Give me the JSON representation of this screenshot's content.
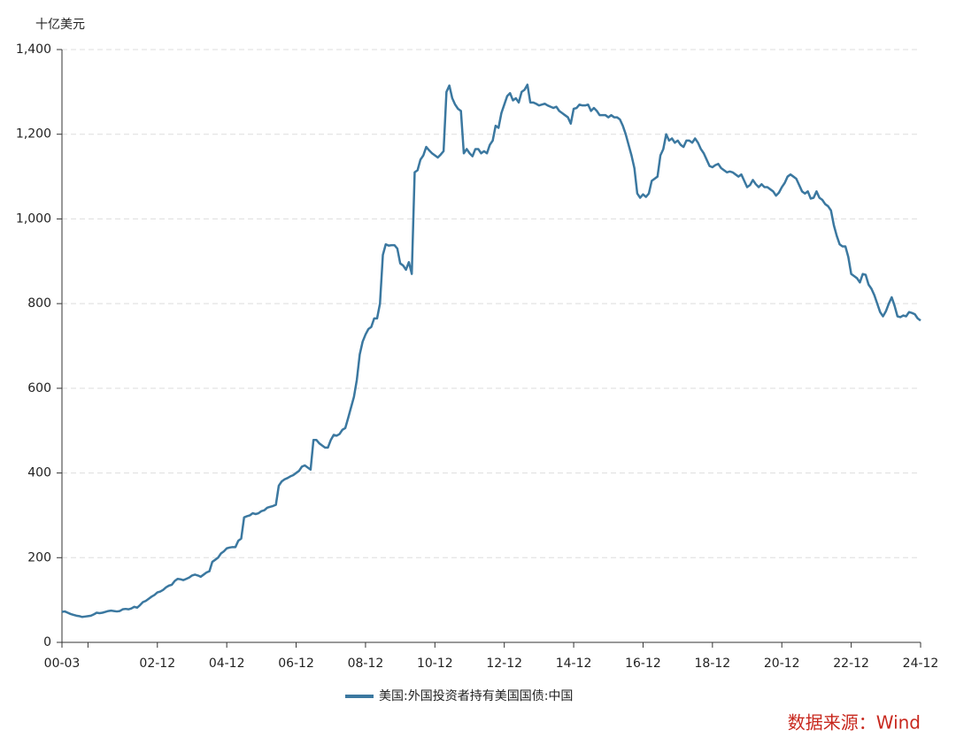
{
  "chart_data": {
    "type": "line",
    "y_label": "十亿美元",
    "source": "数据来源：Wind",
    "categories": [
      "00-03",
      null,
      null,
      null,
      null,
      null,
      null,
      null,
      null,
      null,
      null,
      null,
      null,
      null,
      null,
      null,
      null,
      null,
      null,
      null,
      null,
      null,
      null,
      null,
      null,
      null,
      null,
      null,
      null,
      null,
      null,
      null,
      null,
      "02-12",
      null,
      null,
      null,
      null,
      null,
      null,
      null,
      null,
      null,
      null,
      null,
      null,
      null,
      null,
      null,
      null,
      null,
      null,
      null,
      null,
      null,
      null,
      null,
      "04-12",
      null,
      null,
      null,
      null,
      null,
      null,
      null,
      null,
      null,
      null,
      null,
      null,
      null,
      null,
      null,
      null,
      null,
      null,
      null,
      null,
      null,
      null,
      null,
      "06-12",
      null,
      null,
      null,
      null,
      null,
      null,
      null,
      null,
      null,
      null,
      null,
      null,
      null,
      null,
      null,
      null,
      null,
      null,
      null,
      null,
      null,
      null,
      null,
      "08-12",
      null,
      null,
      null,
      null,
      null,
      null,
      null,
      null,
      null,
      null,
      null,
      null,
      null,
      null,
      null,
      null,
      null,
      null,
      null,
      null,
      null,
      null,
      null,
      "10-12",
      null,
      null,
      null,
      null,
      null,
      null,
      null,
      null,
      null,
      null,
      null,
      null,
      null,
      null,
      null,
      null,
      null,
      null,
      null,
      null,
      null,
      null,
      null,
      "12-12",
      null,
      null,
      null,
      null,
      null,
      null,
      null,
      null,
      null,
      null,
      null,
      null,
      null,
      null,
      null,
      null,
      null,
      null,
      null,
      null,
      null,
      null,
      null,
      "14-12",
      null,
      null,
      null,
      null,
      null,
      null,
      null,
      null,
      null,
      null,
      null,
      null,
      null,
      null,
      null,
      null,
      null,
      null,
      null,
      null,
      null,
      null,
      null,
      "16-12",
      null,
      null,
      null,
      null,
      null,
      null,
      null,
      null,
      null,
      null,
      null,
      null,
      null,
      null,
      null,
      null,
      null,
      null,
      null,
      null,
      null,
      null,
      null,
      "18-12",
      null,
      null,
      null,
      null,
      null,
      null,
      null,
      null,
      null,
      null,
      null,
      null,
      null,
      null,
      null,
      null,
      null,
      null,
      null,
      null,
      null,
      null,
      null,
      "20-12",
      null,
      null,
      null,
      null,
      null,
      null,
      null,
      null,
      null,
      null,
      null,
      null,
      null,
      null,
      null,
      null,
      null,
      null,
      null,
      null,
      null,
      null,
      null,
      "22-12",
      null,
      null,
      null,
      null,
      null,
      null,
      null,
      null,
      null,
      null,
      null,
      null,
      null,
      null,
      null,
      null,
      null,
      null,
      null,
      null,
      null,
      null,
      null,
      "24-12"
    ],
    "series": [
      {
        "name": "美国:外国投资者持有美国国债:中国",
        "color": "#3b78a0",
        "values": [
          72,
          73,
          70,
          67,
          65,
          63,
          62,
          60,
          61,
          62,
          63,
          66,
          70,
          69,
          70,
          72,
          74,
          75,
          74,
          73,
          74,
          78,
          79,
          78,
          80,
          84,
          82,
          88,
          95,
          98,
          103,
          108,
          112,
          118,
          120,
          124,
          130,
          134,
          136,
          145,
          150,
          149,
          147,
          150,
          153,
          158,
          160,
          158,
          155,
          160,
          165,
          168,
          190,
          195,
          200,
          210,
          215,
          222,
          224,
          225,
          225,
          240,
          245,
          295,
          298,
          300,
          305,
          303,
          305,
          310,
          312,
          318,
          320,
          322,
          325,
          370,
          380,
          385,
          388,
          392,
          395,
          400,
          405,
          415,
          418,
          413,
          408,
          478,
          478,
          470,
          465,
          460,
          460,
          478,
          490,
          488,
          492,
          502,
          506,
          530,
          555,
          580,
          620,
          680,
          710,
          727,
          740,
          745,
          765,
          765,
          800,
          915,
          940,
          937,
          938,
          938,
          930,
          895,
          890,
          880,
          898,
          870,
          1110,
          1115,
          1140,
          1150,
          1170,
          1162,
          1155,
          1150,
          1145,
          1152,
          1160,
          1300,
          1315,
          1285,
          1270,
          1260,
          1255,
          1155,
          1165,
          1155,
          1148,
          1165,
          1165,
          1155,
          1160,
          1155,
          1175,
          1185,
          1220,
          1215,
          1250,
          1270,
          1290,
          1297,
          1280,
          1285,
          1275,
          1300,
          1305,
          1317,
          1275,
          1275,
          1272,
          1268,
          1270,
          1272,
          1268,
          1265,
          1262,
          1265,
          1255,
          1250,
          1245,
          1240,
          1225,
          1260,
          1262,
          1270,
          1268,
          1268,
          1270,
          1255,
          1262,
          1255,
          1245,
          1245,
          1245,
          1240,
          1245,
          1240,
          1240,
          1235,
          1220,
          1200,
          1175,
          1150,
          1120,
          1060,
          1050,
          1058,
          1052,
          1060,
          1090,
          1095,
          1100,
          1150,
          1165,
          1200,
          1185,
          1190,
          1180,
          1185,
          1175,
          1170,
          1185,
          1185,
          1180,
          1190,
          1180,
          1165,
          1155,
          1140,
          1125,
          1122,
          1127,
          1130,
          1120,
          1115,
          1110,
          1112,
          1110,
          1105,
          1100,
          1105,
          1090,
          1075,
          1080,
          1092,
          1082,
          1075,
          1082,
          1075,
          1075,
          1070,
          1065,
          1055,
          1062,
          1075,
          1085,
          1100,
          1105,
          1100,
          1095,
          1080,
          1065,
          1060,
          1065,
          1048,
          1050,
          1065,
          1050,
          1045,
          1035,
          1030,
          1020,
          985,
          960,
          940,
          935,
          935,
          910,
          870,
          865,
          860,
          850,
          870,
          868,
          845,
          835,
          820,
          800,
          780,
          770,
          782,
          800,
          815,
          795,
          770,
          768,
          772,
          770,
          780,
          778,
          775,
          765,
          760
        ]
      }
    ],
    "ylim": [
      0,
      1400
    ],
    "yticks": [
      0,
      200,
      400,
      600,
      800,
      {
        "value": 1000,
        "label": "1,000"
      },
      {
        "value": 1200,
        "label": "1,200"
      },
      {
        "value": 1400,
        "label": "1,400"
      }
    ],
    "grid": true
  }
}
